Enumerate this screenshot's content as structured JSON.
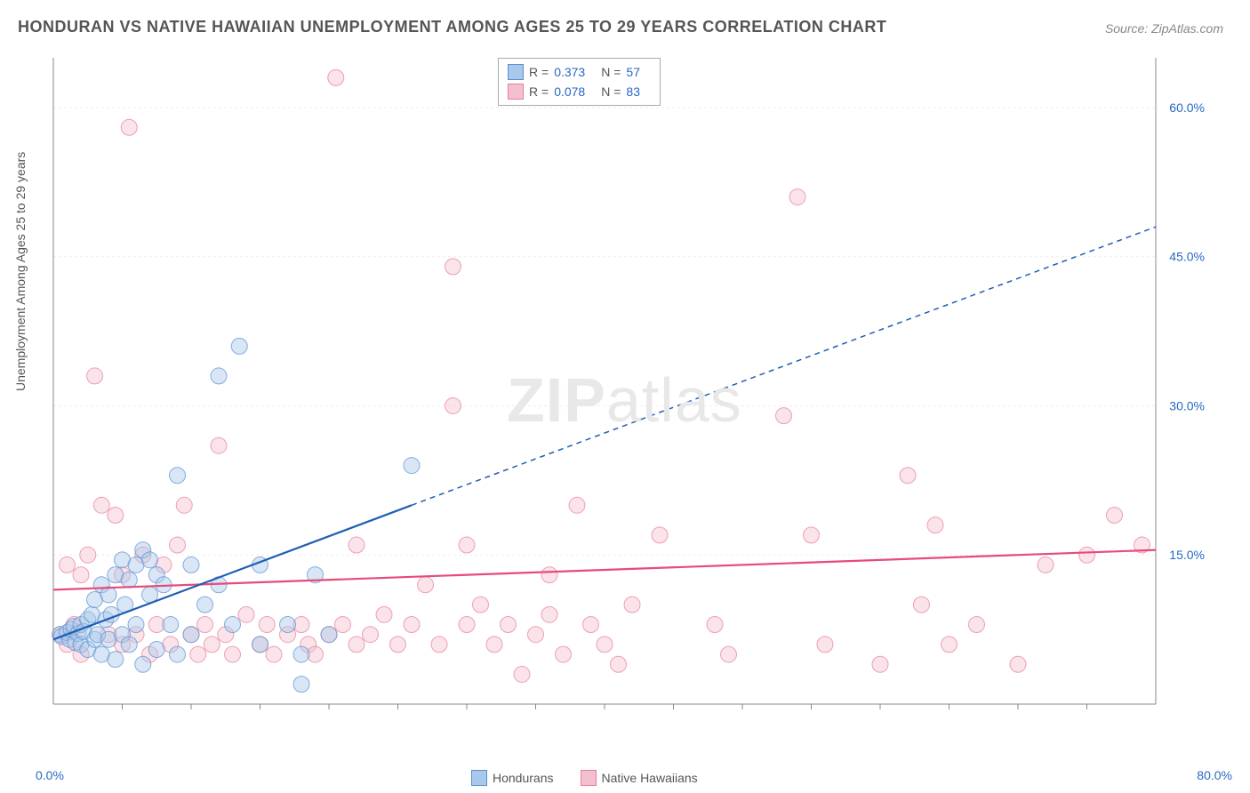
{
  "title": "HONDURAN VS NATIVE HAWAIIAN UNEMPLOYMENT AMONG AGES 25 TO 29 YEARS CORRELATION CHART",
  "source": "Source: ZipAtlas.com",
  "y_axis_label": "Unemployment Among Ages 25 to 29 years",
  "watermark_bold": "ZIP",
  "watermark_light": "atlas",
  "chart": {
    "type": "scatter",
    "xlim": [
      0,
      80
    ],
    "ylim": [
      0,
      65
    ],
    "x_tick_origin": "0.0%",
    "x_tick_max": "80.0%",
    "y_ticks": [
      {
        "val": 15,
        "label": "15.0%"
      },
      {
        "val": 30,
        "label": "30.0%"
      },
      {
        "val": 45,
        "label": "45.0%"
      },
      {
        "val": 60,
        "label": "60.0%"
      }
    ],
    "x_minor_ticks": [
      5,
      10,
      15,
      20,
      25,
      30,
      35,
      40,
      45,
      50,
      55,
      60,
      65,
      70,
      75
    ],
    "grid_color": "#eeeeee",
    "axis_color": "#888888",
    "background_color": "#ffffff",
    "marker_radius": 9,
    "marker_opacity": 0.45,
    "line_width": 2.2,
    "series": [
      {
        "name": "Hondurans",
        "color_fill": "#a8c8ec",
        "color_stroke": "#5b8fce",
        "color_line": "#1e5fb3",
        "R": "0.373",
        "N": "57",
        "trend": {
          "x1": 0,
          "y1": 6.5,
          "x2": 26,
          "y2": 20,
          "dash_x2": 80,
          "dash_y2": 48
        },
        "points": [
          [
            0.5,
            7
          ],
          [
            0.6,
            6.8
          ],
          [
            1,
            7.2
          ],
          [
            1.2,
            6.5
          ],
          [
            1.3,
            7.5
          ],
          [
            1.5,
            7.8
          ],
          [
            1.6,
            6.2
          ],
          [
            1.8,
            7.1
          ],
          [
            2,
            8
          ],
          [
            2,
            6
          ],
          [
            2.2,
            7.3
          ],
          [
            2.5,
            8.5
          ],
          [
            2.5,
            5.5
          ],
          [
            2.8,
            9
          ],
          [
            3,
            6.5
          ],
          [
            3,
            10.5
          ],
          [
            3.2,
            7
          ],
          [
            3.5,
            12
          ],
          [
            3.5,
            5
          ],
          [
            3.8,
            8.5
          ],
          [
            4,
            11
          ],
          [
            4,
            6.5
          ],
          [
            4.2,
            9
          ],
          [
            4.5,
            13
          ],
          [
            4.5,
            4.5
          ],
          [
            5,
            14.5
          ],
          [
            5,
            7
          ],
          [
            5.2,
            10
          ],
          [
            5.5,
            12.5
          ],
          [
            5.5,
            6
          ],
          [
            6,
            14
          ],
          [
            6,
            8
          ],
          [
            6.5,
            15.5
          ],
          [
            6.5,
            4
          ],
          [
            7,
            11
          ],
          [
            7,
            14.5
          ],
          [
            7.5,
            13
          ],
          [
            7.5,
            5.5
          ],
          [
            8,
            12
          ],
          [
            8.5,
            8
          ],
          [
            9,
            23
          ],
          [
            9,
            5
          ],
          [
            10,
            14
          ],
          [
            10,
            7
          ],
          [
            11,
            10
          ],
          [
            12,
            12
          ],
          [
            12,
            33
          ],
          [
            13,
            8
          ],
          [
            13.5,
            36
          ],
          [
            15,
            6
          ],
          [
            15,
            14
          ],
          [
            17,
            8
          ],
          [
            18,
            5
          ],
          [
            18,
            2
          ],
          [
            19,
            13
          ],
          [
            20,
            7
          ],
          [
            26,
            24
          ]
        ]
      },
      {
        "name": "Native Hawaiians",
        "color_fill": "#f5c0ce",
        "color_stroke": "#e77c9a",
        "color_line": "#e84a7a",
        "R": "0.078",
        "N": "83",
        "trend": {
          "x1": 0,
          "y1": 11.5,
          "x2": 80,
          "y2": 15.5
        },
        "points": [
          [
            0.5,
            7
          ],
          [
            1,
            6
          ],
          [
            1,
            14
          ],
          [
            1.5,
            8
          ],
          [
            2,
            5
          ],
          [
            2,
            13
          ],
          [
            2.5,
            15
          ],
          [
            3,
            33
          ],
          [
            3.5,
            20
          ],
          [
            4,
            7
          ],
          [
            4.5,
            19
          ],
          [
            5,
            6
          ],
          [
            5,
            13
          ],
          [
            5.5,
            58
          ],
          [
            6,
            7
          ],
          [
            6.5,
            15
          ],
          [
            7,
            5
          ],
          [
            7.5,
            8
          ],
          [
            8,
            14
          ],
          [
            8.5,
            6
          ],
          [
            9,
            16
          ],
          [
            9.5,
            20
          ],
          [
            10,
            7
          ],
          [
            10.5,
            5
          ],
          [
            11,
            8
          ],
          [
            11.5,
            6
          ],
          [
            12,
            26
          ],
          [
            12.5,
            7
          ],
          [
            13,
            5
          ],
          [
            14,
            9
          ],
          [
            15,
            6
          ],
          [
            15.5,
            8
          ],
          [
            16,
            5
          ],
          [
            17,
            7
          ],
          [
            18,
            8
          ],
          [
            18.5,
            6
          ],
          [
            19,
            5
          ],
          [
            20,
            7
          ],
          [
            20.5,
            63
          ],
          [
            21,
            8
          ],
          [
            22,
            6
          ],
          [
            22,
            16
          ],
          [
            23,
            7
          ],
          [
            24,
            9
          ],
          [
            25,
            6
          ],
          [
            26,
            8
          ],
          [
            27,
            12
          ],
          [
            28,
            6
          ],
          [
            29,
            44
          ],
          [
            29,
            30
          ],
          [
            30,
            16
          ],
          [
            30,
            8
          ],
          [
            31,
            10
          ],
          [
            32,
            6
          ],
          [
            33,
            8
          ],
          [
            34,
            3
          ],
          [
            35,
            7
          ],
          [
            36,
            9
          ],
          [
            36,
            13
          ],
          [
            37,
            5
          ],
          [
            38,
            20
          ],
          [
            39,
            8
          ],
          [
            40,
            6
          ],
          [
            41,
            4
          ],
          [
            42,
            10
          ],
          [
            44,
            17
          ],
          [
            48,
            8
          ],
          [
            49,
            5
          ],
          [
            53,
            29
          ],
          [
            54,
            51
          ],
          [
            55,
            17
          ],
          [
            56,
            6
          ],
          [
            60,
            4
          ],
          [
            62,
            23
          ],
          [
            63,
            10
          ],
          [
            64,
            18
          ],
          [
            65,
            6
          ],
          [
            67,
            8
          ],
          [
            70,
            4
          ],
          [
            72,
            14
          ],
          [
            75,
            15
          ],
          [
            77,
            19
          ],
          [
            79,
            16
          ]
        ]
      }
    ]
  },
  "legend_bottom": [
    {
      "label": "Hondurans",
      "fill": "#a8c8ec",
      "stroke": "#5b8fce"
    },
    {
      "label": "Native Hawaiians",
      "fill": "#f5c0ce",
      "stroke": "#e77c9a"
    }
  ]
}
